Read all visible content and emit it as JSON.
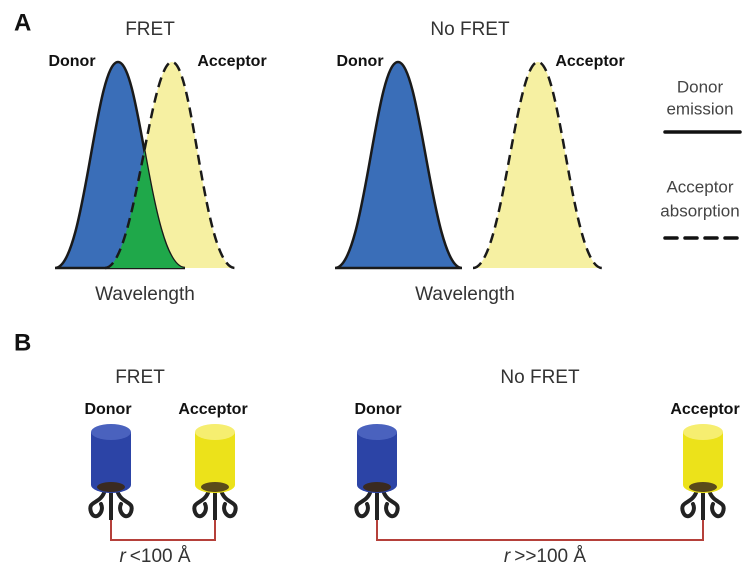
{
  "panel_a": {
    "label": "A",
    "fret": {
      "title": "FRET",
      "donor": "Donor",
      "acceptor": "Acceptor",
      "x_label": "Wavelength"
    },
    "no_fret": {
      "title": "No FRET",
      "donor": "Donor",
      "acceptor": "Acceptor",
      "x_label": "Wavelength"
    },
    "legend": {
      "donor_emission": [
        "Donor",
        "emission"
      ],
      "acceptor_absorption": [
        "Acceptor",
        "absorption"
      ]
    }
  },
  "panel_b": {
    "label": "B",
    "fret": {
      "title": "FRET",
      "donor": "Donor",
      "acceptor": "Acceptor",
      "distance_symbol": "r",
      "distance": "<100 Å"
    },
    "no_fret": {
      "title": "No FRET",
      "donor": "Donor",
      "acceptor": "Acceptor",
      "distance_symbol": "r",
      "distance": ">>100 Å"
    }
  }
}
